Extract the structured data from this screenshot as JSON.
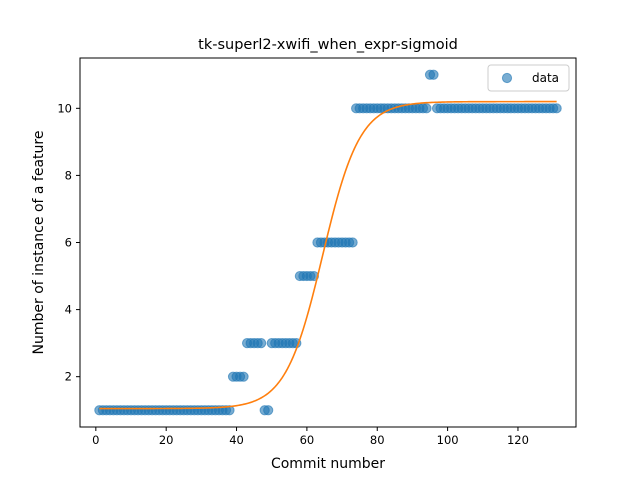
{
  "chart_data": {
    "type": "scatter",
    "title": "tk-superl2-xwifi_when_expr-sigmoid",
    "xlabel": "Commit number",
    "ylabel": "Number of instance of a feature",
    "xlim": [
      -4.5,
      136.5
    ],
    "ylim": [
      0.5,
      11.5
    ],
    "xticks": [
      0,
      20,
      40,
      60,
      80,
      100,
      120
    ],
    "yticks": [
      2,
      4,
      6,
      8,
      10
    ],
    "grid": false,
    "legend": {
      "placement": "top-right",
      "entries": [
        "data"
      ]
    },
    "colors": {
      "data": "#1f77b4",
      "fit": "#ff7f0e"
    },
    "series": [
      {
        "name": "data",
        "kind": "scatter",
        "x": [
          1,
          2,
          3,
          4,
          5,
          6,
          7,
          8,
          9,
          10,
          11,
          12,
          13,
          14,
          15,
          16,
          17,
          18,
          19,
          20,
          21,
          22,
          23,
          24,
          25,
          26,
          27,
          28,
          29,
          30,
          31,
          32,
          33,
          34,
          35,
          36,
          37,
          38,
          39,
          40,
          41,
          42,
          43,
          44,
          45,
          46,
          47,
          48,
          49,
          50,
          51,
          52,
          53,
          54,
          55,
          56,
          57,
          58,
          59,
          60,
          61,
          62,
          63,
          64,
          65,
          66,
          67,
          68,
          69,
          70,
          71,
          72,
          73,
          74,
          75,
          76,
          77,
          78,
          79,
          80,
          81,
          82,
          83,
          84,
          85,
          86,
          87,
          88,
          89,
          90,
          91,
          92,
          93,
          94,
          95,
          96,
          97,
          98,
          99,
          100,
          101,
          102,
          103,
          104,
          105,
          106,
          107,
          108,
          109,
          110,
          111,
          112,
          113,
          114,
          115,
          116,
          117,
          118,
          119,
          120,
          121,
          122,
          123,
          124,
          125,
          126,
          127,
          128,
          129,
          130,
          131
        ],
        "y": [
          1,
          1,
          1,
          1,
          1,
          1,
          1,
          1,
          1,
          1,
          1,
          1,
          1,
          1,
          1,
          1,
          1,
          1,
          1,
          1,
          1,
          1,
          1,
          1,
          1,
          1,
          1,
          1,
          1,
          1,
          1,
          1,
          1,
          1,
          1,
          1,
          1,
          1,
          2,
          2,
          2,
          2,
          3,
          3,
          3,
          3,
          3,
          1,
          1,
          3,
          3,
          3,
          3,
          3,
          3,
          3,
          3,
          5,
          5,
          5,
          5,
          5,
          6,
          6,
          6,
          6,
          6,
          6,
          6,
          6,
          6,
          6,
          6,
          10,
          10,
          10,
          10,
          10,
          10,
          10,
          10,
          10,
          10,
          10,
          10,
          10,
          10,
          10,
          10,
          10,
          10,
          10,
          10,
          10,
          11,
          11,
          10,
          10,
          10,
          10,
          10,
          10,
          10,
          10,
          10,
          10,
          10,
          10,
          10,
          10,
          10,
          10,
          10,
          10,
          10,
          10,
          10,
          10,
          10,
          10,
          10,
          10,
          10,
          10,
          10,
          10,
          10,
          10,
          10,
          10,
          10
        ]
      },
      {
        "name": "",
        "kind": "line",
        "model": "sigmoid",
        "params": {
          "L": 9.15,
          "k": 0.19,
          "x0": 64.5,
          "b": 1.05
        },
        "x_range": [
          1,
          131
        ]
      }
    ]
  }
}
